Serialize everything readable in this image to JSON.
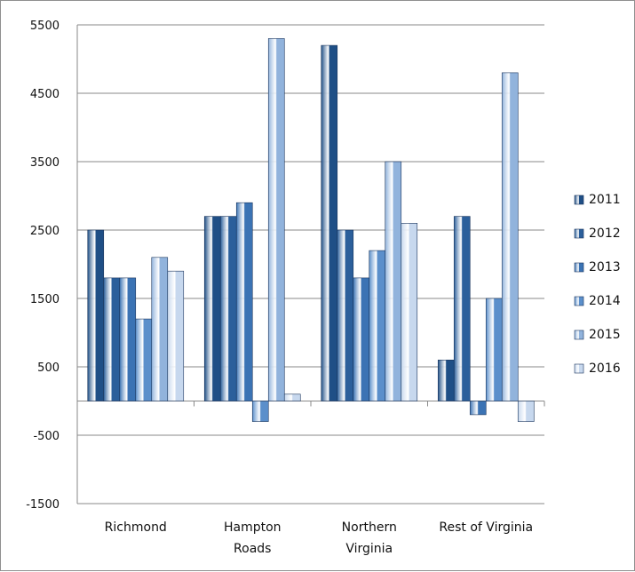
{
  "chart_data": {
    "type": "bar",
    "categories": [
      [
        "Richmond"
      ],
      [
        "Hampton",
        "Roads"
      ],
      [
        "Northern",
        "Virginia"
      ],
      [
        "Rest of Virginia"
      ]
    ],
    "series": [
      {
        "name": "2011",
        "color": "#1f4f86",
        "values": [
          2500,
          2700,
          5200,
          600
        ]
      },
      {
        "name": "2012",
        "color": "#2b5f9b",
        "values": [
          1800,
          2700,
          2500,
          2700
        ]
      },
      {
        "name": "2013",
        "color": "#3b73b4",
        "values": [
          1800,
          2900,
          1800,
          -200
        ]
      },
      {
        "name": "2014",
        "color": "#5b8fcb",
        "values": [
          1200,
          -300,
          2200,
          1500
        ]
      },
      {
        "name": "2015",
        "color": "#91b3dc",
        "values": [
          2100,
          5300,
          3500,
          4800
        ]
      },
      {
        "name": "2016",
        "color": "#c7d8ee",
        "values": [
          1900,
          100,
          2600,
          -300
        ]
      }
    ],
    "ylim": [
      -1500,
      5500
    ],
    "yticks": [
      "5500",
      "4500",
      "3500",
      "2500",
      "1500",
      "500",
      "-500",
      "-1500"
    ],
    "grid": true,
    "legend": "right"
  }
}
